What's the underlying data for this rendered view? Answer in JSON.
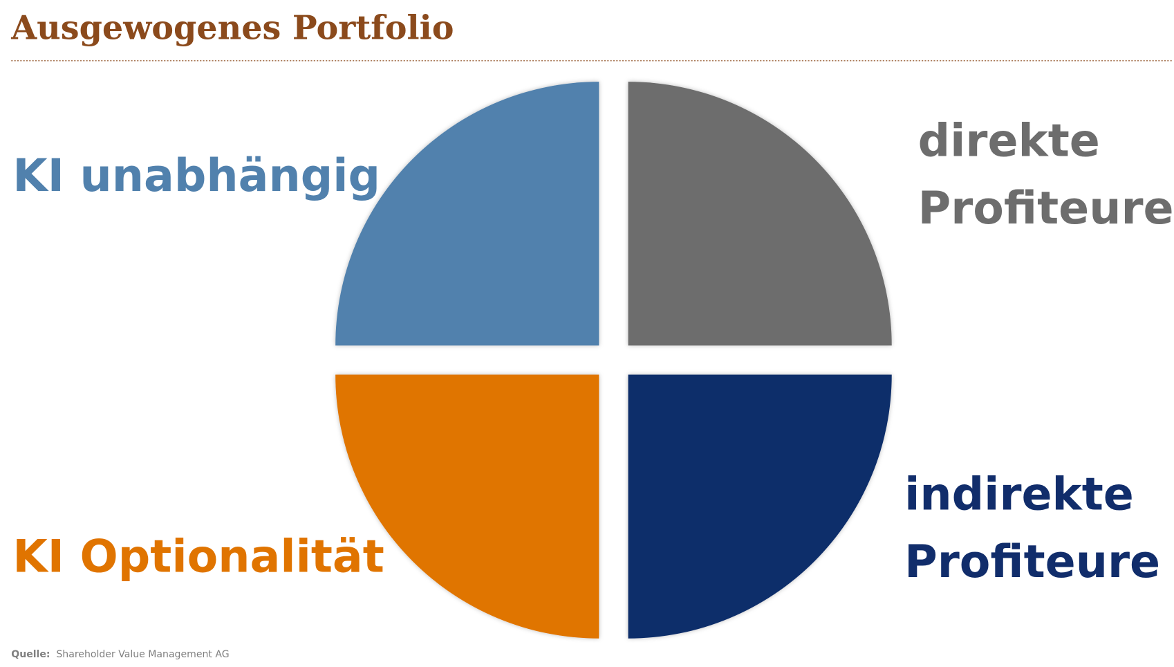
{
  "header": {
    "title": "Ausgewogenes Portfolio"
  },
  "quadrants": [
    {
      "lines": [
        "KI unabhängig"
      ]
    },
    {
      "lines": [
        "direkte",
        "Profiteure"
      ]
    },
    {
      "lines": [
        "indirekte",
        "Profiteure"
      ]
    },
    {
      "lines": [
        "KI Optionalität"
      ]
    }
  ],
  "source": {
    "label": "Quelle:",
    "text": "Shareholder Value Management AG"
  }
}
